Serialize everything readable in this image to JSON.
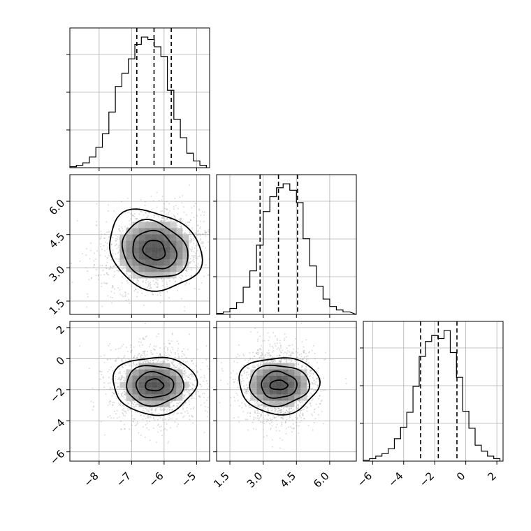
{
  "chart_data": {
    "type": "corner",
    "grid": true,
    "parameters": [
      {
        "range": [
          -8.9,
          -4.6
        ],
        "ticks": [
          -8,
          -7,
          -6,
          -5
        ],
        "tick_labels": [
          "−8",
          "−7",
          "−6",
          "−5"
        ],
        "quantiles": [
          -6.84,
          -6.31,
          -5.78
        ],
        "hist_bins": [
          -8.9,
          -8.7,
          -8.5,
          -8.3,
          -8.1,
          -7.9,
          -7.7,
          -7.5,
          -7.3,
          -7.1,
          -6.9,
          -6.7,
          -6.5,
          -6.3,
          -6.1,
          -5.9,
          -5.7,
          -5.5,
          -5.3,
          -5.1,
          -4.9,
          -4.7
        ],
        "hist_counts": [
          2,
          5,
          10,
          22,
          42,
          70,
          115,
          168,
          195,
          225,
          255,
          270,
          265,
          250,
          230,
          160,
          100,
          62,
          30,
          14,
          5
        ]
      },
      {
        "range": [
          0.9,
          7.2
        ],
        "ticks": [
          1.5,
          3.0,
          4.5,
          6.0
        ],
        "tick_labels": [
          "1.5",
          "3.0",
          "4.5",
          "6.0"
        ],
        "quantiles": [
          2.86,
          3.69,
          4.55
        ],
        "hist_bins": [
          0.9,
          1.2,
          1.5,
          1.8,
          2.1,
          2.4,
          2.7,
          3.0,
          3.3,
          3.6,
          3.9,
          4.2,
          4.5,
          4.8,
          5.1,
          5.4,
          5.7,
          6.0,
          6.3,
          6.6,
          6.9,
          7.2
        ],
        "hist_counts": [
          2,
          5,
          12,
          24,
          55,
          88,
          140,
          208,
          238,
          256,
          264,
          251,
          226,
          153,
          98,
          57,
          31,
          16,
          9,
          5
        ]
      },
      {
        "range": [
          -6.6,
          2.4
        ],
        "ticks": [
          -6,
          -4,
          -2,
          0,
          2
        ],
        "tick_labels": [
          "−6",
          "−4",
          "−2",
          "0",
          "2"
        ],
        "quantiles": [
          -2.91,
          -1.77,
          -0.57
        ],
        "hist_bins": [
          -6.6,
          -6.2,
          -5.8,
          -5.4,
          -5.0,
          -4.6,
          -4.2,
          -3.8,
          -3.4,
          -3.0,
          -2.6,
          -2.2,
          -1.8,
          -1.4,
          -1.0,
          -0.6,
          -0.2,
          0.2,
          0.6,
          1.0,
          1.4,
          1.8,
          2.2
        ],
        "hist_counts": [
          2,
          5,
          10,
          15,
          25,
          45,
          68,
          98,
          150,
          210,
          240,
          252,
          246,
          262,
          218,
          168,
          100,
          66,
          32,
          20,
          10,
          5
        ]
      }
    ],
    "pairs": [
      {
        "x": 0,
        "y": 1,
        "center": [
          -6.3,
          3.8
        ],
        "rotation_deg": -26,
        "contours": [
          [
            0.35,
            0.42
          ],
          [
            0.7,
            0.8
          ],
          [
            1.05,
            1.22
          ],
          [
            1.48,
            1.7
          ]
        ],
        "scatter_spread": [
          0.72,
          0.95
        ]
      },
      {
        "x": 0,
        "y": 2,
        "center": [
          -6.3,
          -1.7
        ],
        "rotation_deg": 0,
        "contours": [
          [
            0.28,
            0.38
          ],
          [
            0.58,
            0.82
          ],
          [
            0.88,
            1.28
          ],
          [
            1.28,
            1.85
          ]
        ],
        "scatter_spread": [
          0.68,
          1.2
        ]
      },
      {
        "x": 1,
        "y": 2,
        "center": [
          3.7,
          -1.7
        ],
        "rotation_deg": 0,
        "contours": [
          [
            0.4,
            0.3
          ],
          [
            0.8,
            0.85
          ],
          [
            1.35,
            1.3
          ],
          [
            1.8,
            1.82
          ]
        ],
        "scatter_spread": [
          0.85,
          1.2
        ]
      }
    ]
  }
}
